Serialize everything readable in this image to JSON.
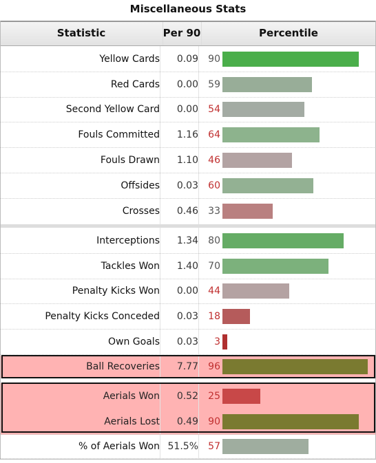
{
  "table": {
    "caption": "Miscellaneous Stats",
    "headers": {
      "statistic": "Statistic",
      "per90": "Per 90",
      "percentile": "Percentile"
    },
    "colors": {
      "low": "#b05656",
      "mid": "#b0a0a0",
      "high": "#4aae4a",
      "highlight_bar": "#7a7a30",
      "highlight_bg": "#ffb3b3",
      "pct_red": "#c03030",
      "pct_gray": "#555555"
    },
    "rows": [
      {
        "stat": "Yellow Cards",
        "per90": "0.09",
        "pct": "90",
        "value": 90,
        "bar": "#4aae4a",
        "pctColor": "#555555"
      },
      {
        "stat": "Red Cards",
        "per90": "0.00",
        "pct": "59",
        "value": 59,
        "bar": "#98ad98",
        "pctColor": "#555555"
      },
      {
        "stat": "Second Yellow Card",
        "per90": "0.00",
        "pct": "54",
        "value": 54,
        "bar": "#a3aba3",
        "pctColor": "#c03030"
      },
      {
        "stat": "Fouls Committed",
        "per90": "1.16",
        "pct": "64",
        "value": 64,
        "bar": "#8db38d",
        "pctColor": "#c03030"
      },
      {
        "stat": "Fouls Drawn",
        "per90": "1.10",
        "pct": "46",
        "value": 46,
        "bar": "#b3a3a3",
        "pctColor": "#c03030"
      },
      {
        "stat": "Offsides",
        "per90": "0.03",
        "pct": "60",
        "value": 60,
        "bar": "#93b193",
        "pctColor": "#c03030"
      },
      {
        "stat": "Crosses",
        "per90": "0.46",
        "pct": "33",
        "value": 33,
        "bar": "#b98080",
        "pctColor": "#555555"
      },
      {
        "stat": "Interceptions",
        "per90": "1.34",
        "pct": "80",
        "value": 80,
        "bar": "#65ac65",
        "pctColor": "#555555"
      },
      {
        "stat": "Tackles Won",
        "per90": "1.40",
        "pct": "70",
        "value": 70,
        "bar": "#7cb17c",
        "pctColor": "#555555"
      },
      {
        "stat": "Penalty Kicks Won",
        "per90": "0.00",
        "pct": "44",
        "value": 44,
        "bar": "#b4a2a2",
        "pctColor": "#c03030"
      },
      {
        "stat": "Penalty Kicks Conceded",
        "per90": "0.03",
        "pct": "18",
        "value": 18,
        "bar": "#b55b5b",
        "pctColor": "#c03030"
      },
      {
        "stat": "Own Goals",
        "per90": "0.03",
        "pct": "3",
        "value": 3,
        "bar": "#b03030",
        "pctColor": "#c03030"
      },
      {
        "stat": "Ball Recoveries",
        "per90": "7.77",
        "pct": "96",
        "value": 96,
        "bar": "#7a7a30",
        "pctColor": "#c03030",
        "highlight": true
      },
      {
        "stat": "Aerials Won",
        "per90": "0.52",
        "pct": "25",
        "value": 25,
        "bar": "#c84848",
        "pctColor": "#c03030",
        "highlight": true
      },
      {
        "stat": "Aerials Lost",
        "per90": "0.49",
        "pct": "90",
        "value": 90,
        "bar": "#7a7a30",
        "pctColor": "#c03030",
        "highlight": true
      },
      {
        "stat": "% of Aerials Won",
        "per90": "51.5%",
        "pct": "57",
        "value": 57,
        "bar": "#9fad9f",
        "pctColor": "#c03030"
      }
    ]
  }
}
